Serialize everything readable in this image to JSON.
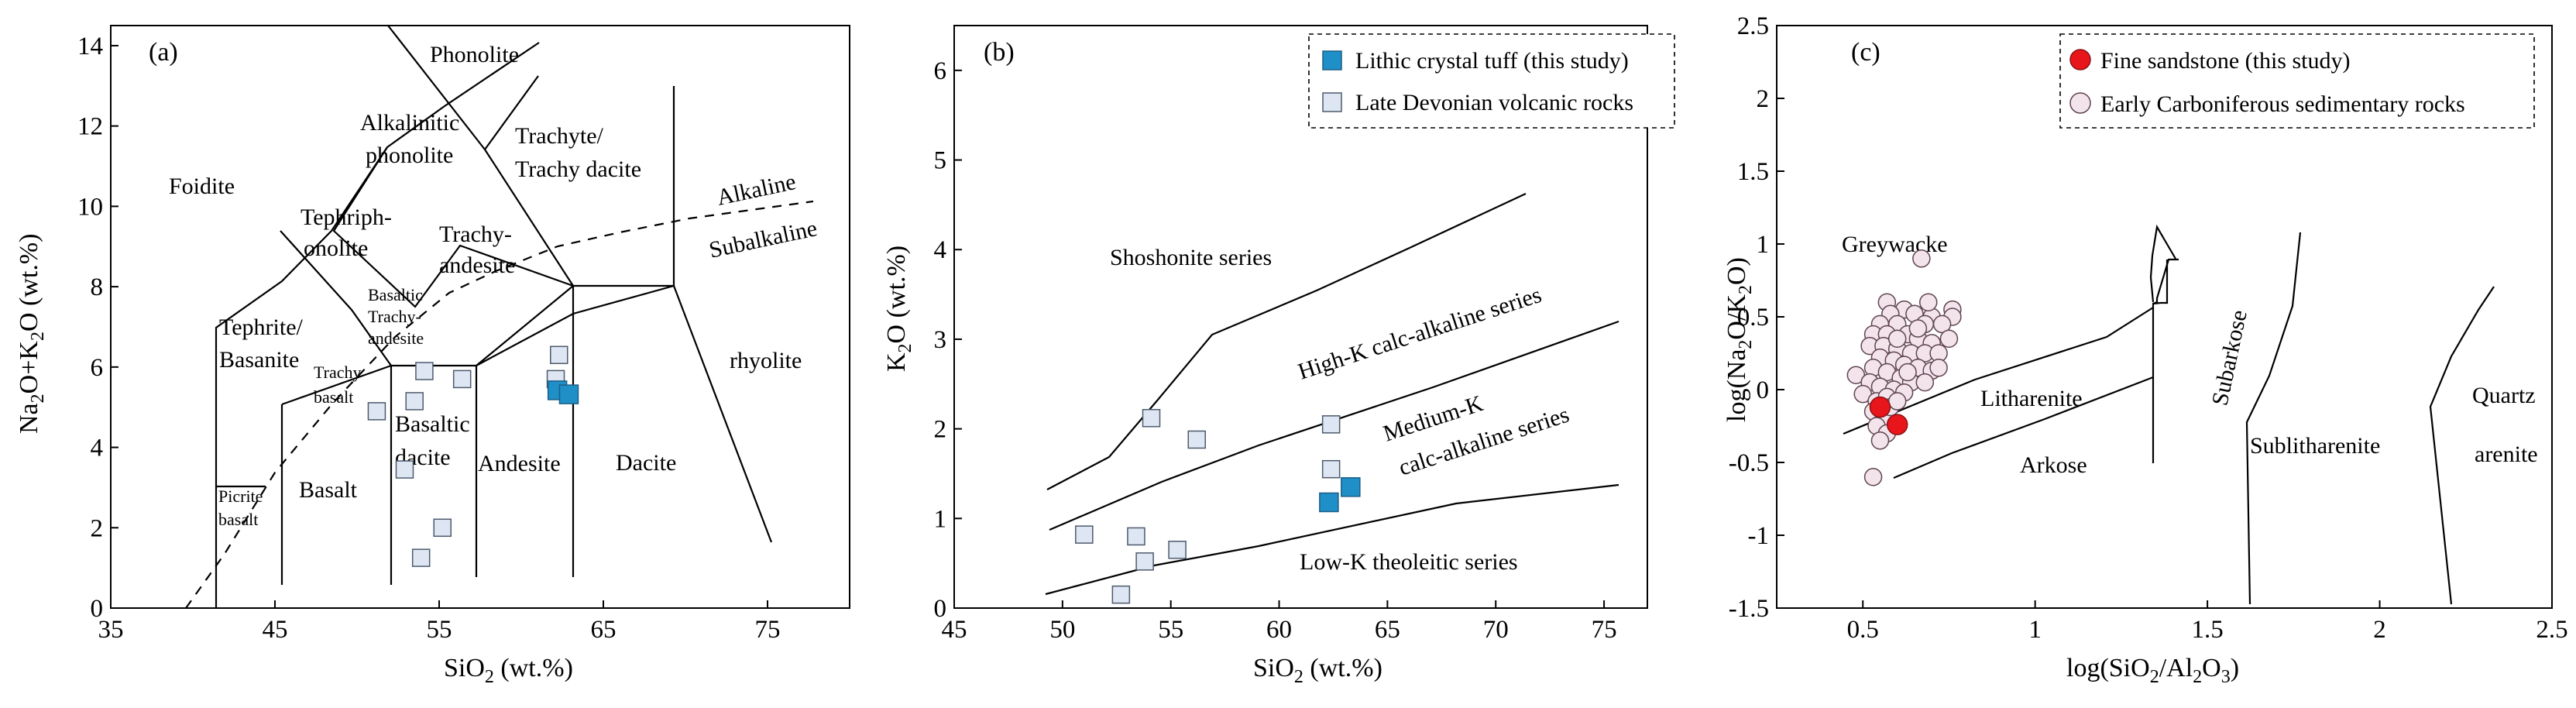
{
  "chart_data": [
    {
      "type": "scatter",
      "panel": "(a)",
      "xlabel": "SiO2 (wt.%)",
      "ylabel": "Na2O+K2O (wt.%)",
      "xlim": [
        35,
        80
      ],
      "ylim": [
        0,
        14.5
      ],
      "xticks": [
        "35",
        "45",
        "55",
        "65",
        "75"
      ],
      "yticks": [
        "0",
        "2",
        "4",
        "6",
        "8",
        "10",
        "12",
        "14"
      ],
      "boundary_names": [
        "Alkaline",
        "Subalkaline"
      ],
      "fields": [
        "Foidite",
        "Phonolite",
        "Alkalinitic phonolite",
        "Tephriph-onolite",
        "Trachyte/ Trachy dacite",
        "Trachy-andesite",
        "Basaltic Trachy-andesite",
        "Tephrite/ Basanite",
        "Trachy basalt",
        "Basaltic dacite",
        "Picrite basalt",
        "Basalt",
        "Andesite",
        "Dacite",
        "rhyolite"
      ],
      "series": [
        {
          "name": "Lithic crystal tuff (this study)",
          "marker": "filled-square",
          "color": "#1f8fc8",
          "points": [
            [
              62.2,
              5.42
            ],
            [
              62.9,
              5.32
            ]
          ]
        },
        {
          "name": "Late Devonian volcanic rocks",
          "marker": "open-square",
          "color": "#dde6f2",
          "points": [
            [
              51.2,
              4.9
            ],
            [
              52.9,
              3.45
            ],
            [
              53.5,
              5.15
            ],
            [
              54.1,
              5.9
            ],
            [
              56.4,
              5.7
            ],
            [
              62.3,
              6.3
            ],
            [
              62.1,
              5.7
            ],
            [
              53.9,
              1.25
            ],
            [
              55.2,
              2.0
            ]
          ]
        }
      ]
    },
    {
      "type": "scatter",
      "panel": "(b)",
      "xlabel": "SiO2 (wt.%)",
      "ylabel": "K2O (wt.%)",
      "xlim": [
        45,
        77
      ],
      "ylim": [
        0,
        6.5
      ],
      "xticks": [
        "45",
        "50",
        "55",
        "60",
        "65",
        "70",
        "75"
      ],
      "yticks": [
        "0",
        "1",
        "2",
        "3",
        "4",
        "5",
        "6"
      ],
      "fields": [
        "Shoshonite series",
        "High-K calc-alkaline series",
        "Medium-K calc-alkaline series",
        "Low-K theoleitic series"
      ],
      "legend": [
        "Lithic crystal tuff (this study)",
        "Late Devonian volcanic rocks"
      ],
      "series": [
        {
          "name": "Lithic crystal tuff (this study)",
          "marker": "filled-square",
          "color": "#1f8fc8",
          "points": [
            [
              62.3,
              1.18
            ],
            [
              63.3,
              1.35
            ]
          ]
        },
        {
          "name": "Late Devonian volcanic rocks",
          "marker": "open-square",
          "color": "#dde6f2",
          "points": [
            [
              54.1,
              2.12
            ],
            [
              56.2,
              1.88
            ],
            [
              62.4,
              2.05
            ],
            [
              62.4,
              1.55
            ],
            [
              51,
              0.82
            ],
            [
              53.4,
              0.8
            ],
            [
              55.3,
              0.65
            ],
            [
              53.8,
              0.52
            ],
            [
              52.7,
              0.15
            ]
          ]
        }
      ]
    },
    {
      "type": "scatter",
      "panel": "(c)",
      "xlabel": "log(SiO2/Al2O3)",
      "ylabel": "log(Na2O/K2O)",
      "xlim": [
        0.25,
        2.5
      ],
      "ylim": [
        -1.5,
        2.5
      ],
      "xticks": [
        "0.5",
        "1",
        "1.5",
        "2",
        "2.5"
      ],
      "yticks": [
        "-1.5",
        "-1",
        "-0.5",
        "0",
        "0.5",
        "1",
        "1.5",
        "2",
        "2.5"
      ],
      "fields": [
        "Greywacke",
        "Litharenite",
        "Arkose",
        "Subarkose",
        "Sublitharenite",
        "Quartz",
        "arenite"
      ],
      "legend": [
        "Fine sandstone (this study)",
        "Early Carboniferous sedimentary rocks"
      ],
      "series": [
        {
          "name": "Fine sandstone (this study)",
          "marker": "filled-circle",
          "color": "#e8161b",
          "points": [
            [
              0.55,
              -0.12
            ],
            [
              0.6,
              -0.24
            ]
          ]
        },
        {
          "name": "Early Carboniferous sedimentary rocks",
          "marker": "open-circle",
          "color": "#f3e4ec",
          "points": [
            [
              0.67,
              0.9
            ],
            [
              0.57,
              0.6
            ],
            [
              0.62,
              0.55
            ],
            [
              0.58,
              0.52
            ],
            [
              0.65,
              0.52
            ],
            [
              0.7,
              0.5
            ],
            [
              0.76,
              0.55
            ],
            [
              0.76,
              0.5
            ],
            [
              0.55,
              0.45
            ],
            [
              0.6,
              0.45
            ],
            [
              0.68,
              0.45
            ],
            [
              0.73,
              0.45
            ],
            [
              0.53,
              0.38
            ],
            [
              0.57,
              0.38
            ],
            [
              0.63,
              0.38
            ],
            [
              0.66,
              0.35
            ],
            [
              0.7,
              0.32
            ],
            [
              0.75,
              0.35
            ],
            [
              0.52,
              0.3
            ],
            [
              0.56,
              0.3
            ],
            [
              0.6,
              0.28
            ],
            [
              0.64,
              0.25
            ],
            [
              0.68,
              0.25
            ],
            [
              0.72,
              0.25
            ],
            [
              0.55,
              0.22
            ],
            [
              0.59,
              0.2
            ],
            [
              0.62,
              0.17
            ],
            [
              0.66,
              0.15
            ],
            [
              0.7,
              0.13
            ],
            [
              0.53,
              0.15
            ],
            [
              0.57,
              0.12
            ],
            [
              0.61,
              0.08
            ],
            [
              0.64,
              0.05
            ],
            [
              0.68,
              0.05
            ],
            [
              0.48,
              0.1
            ],
            [
              0.52,
              0.05
            ],
            [
              0.55,
              0.02
            ],
            [
              0.59,
              0
            ],
            [
              0.62,
              -0.02
            ],
            [
              0.5,
              -0.03
            ],
            [
              0.54,
              -0.08
            ],
            [
              0.57,
              -0.05
            ],
            [
              0.53,
              -0.15
            ],
            [
              0.56,
              -0.2
            ],
            [
              0.54,
              -0.25
            ],
            [
              0.57,
              -0.3
            ],
            [
              0.55,
              -0.35
            ],
            [
              0.53,
              -0.6
            ],
            [
              0.58,
              -0.12
            ],
            [
              0.6,
              -0.08
            ],
            [
              0.63,
              0.12
            ],
            [
              0.6,
              0.35
            ],
            [
              0.66,
              0.42
            ],
            [
              0.72,
              0.15
            ],
            [
              0.69,
              0.6
            ]
          ]
        }
      ]
    }
  ]
}
